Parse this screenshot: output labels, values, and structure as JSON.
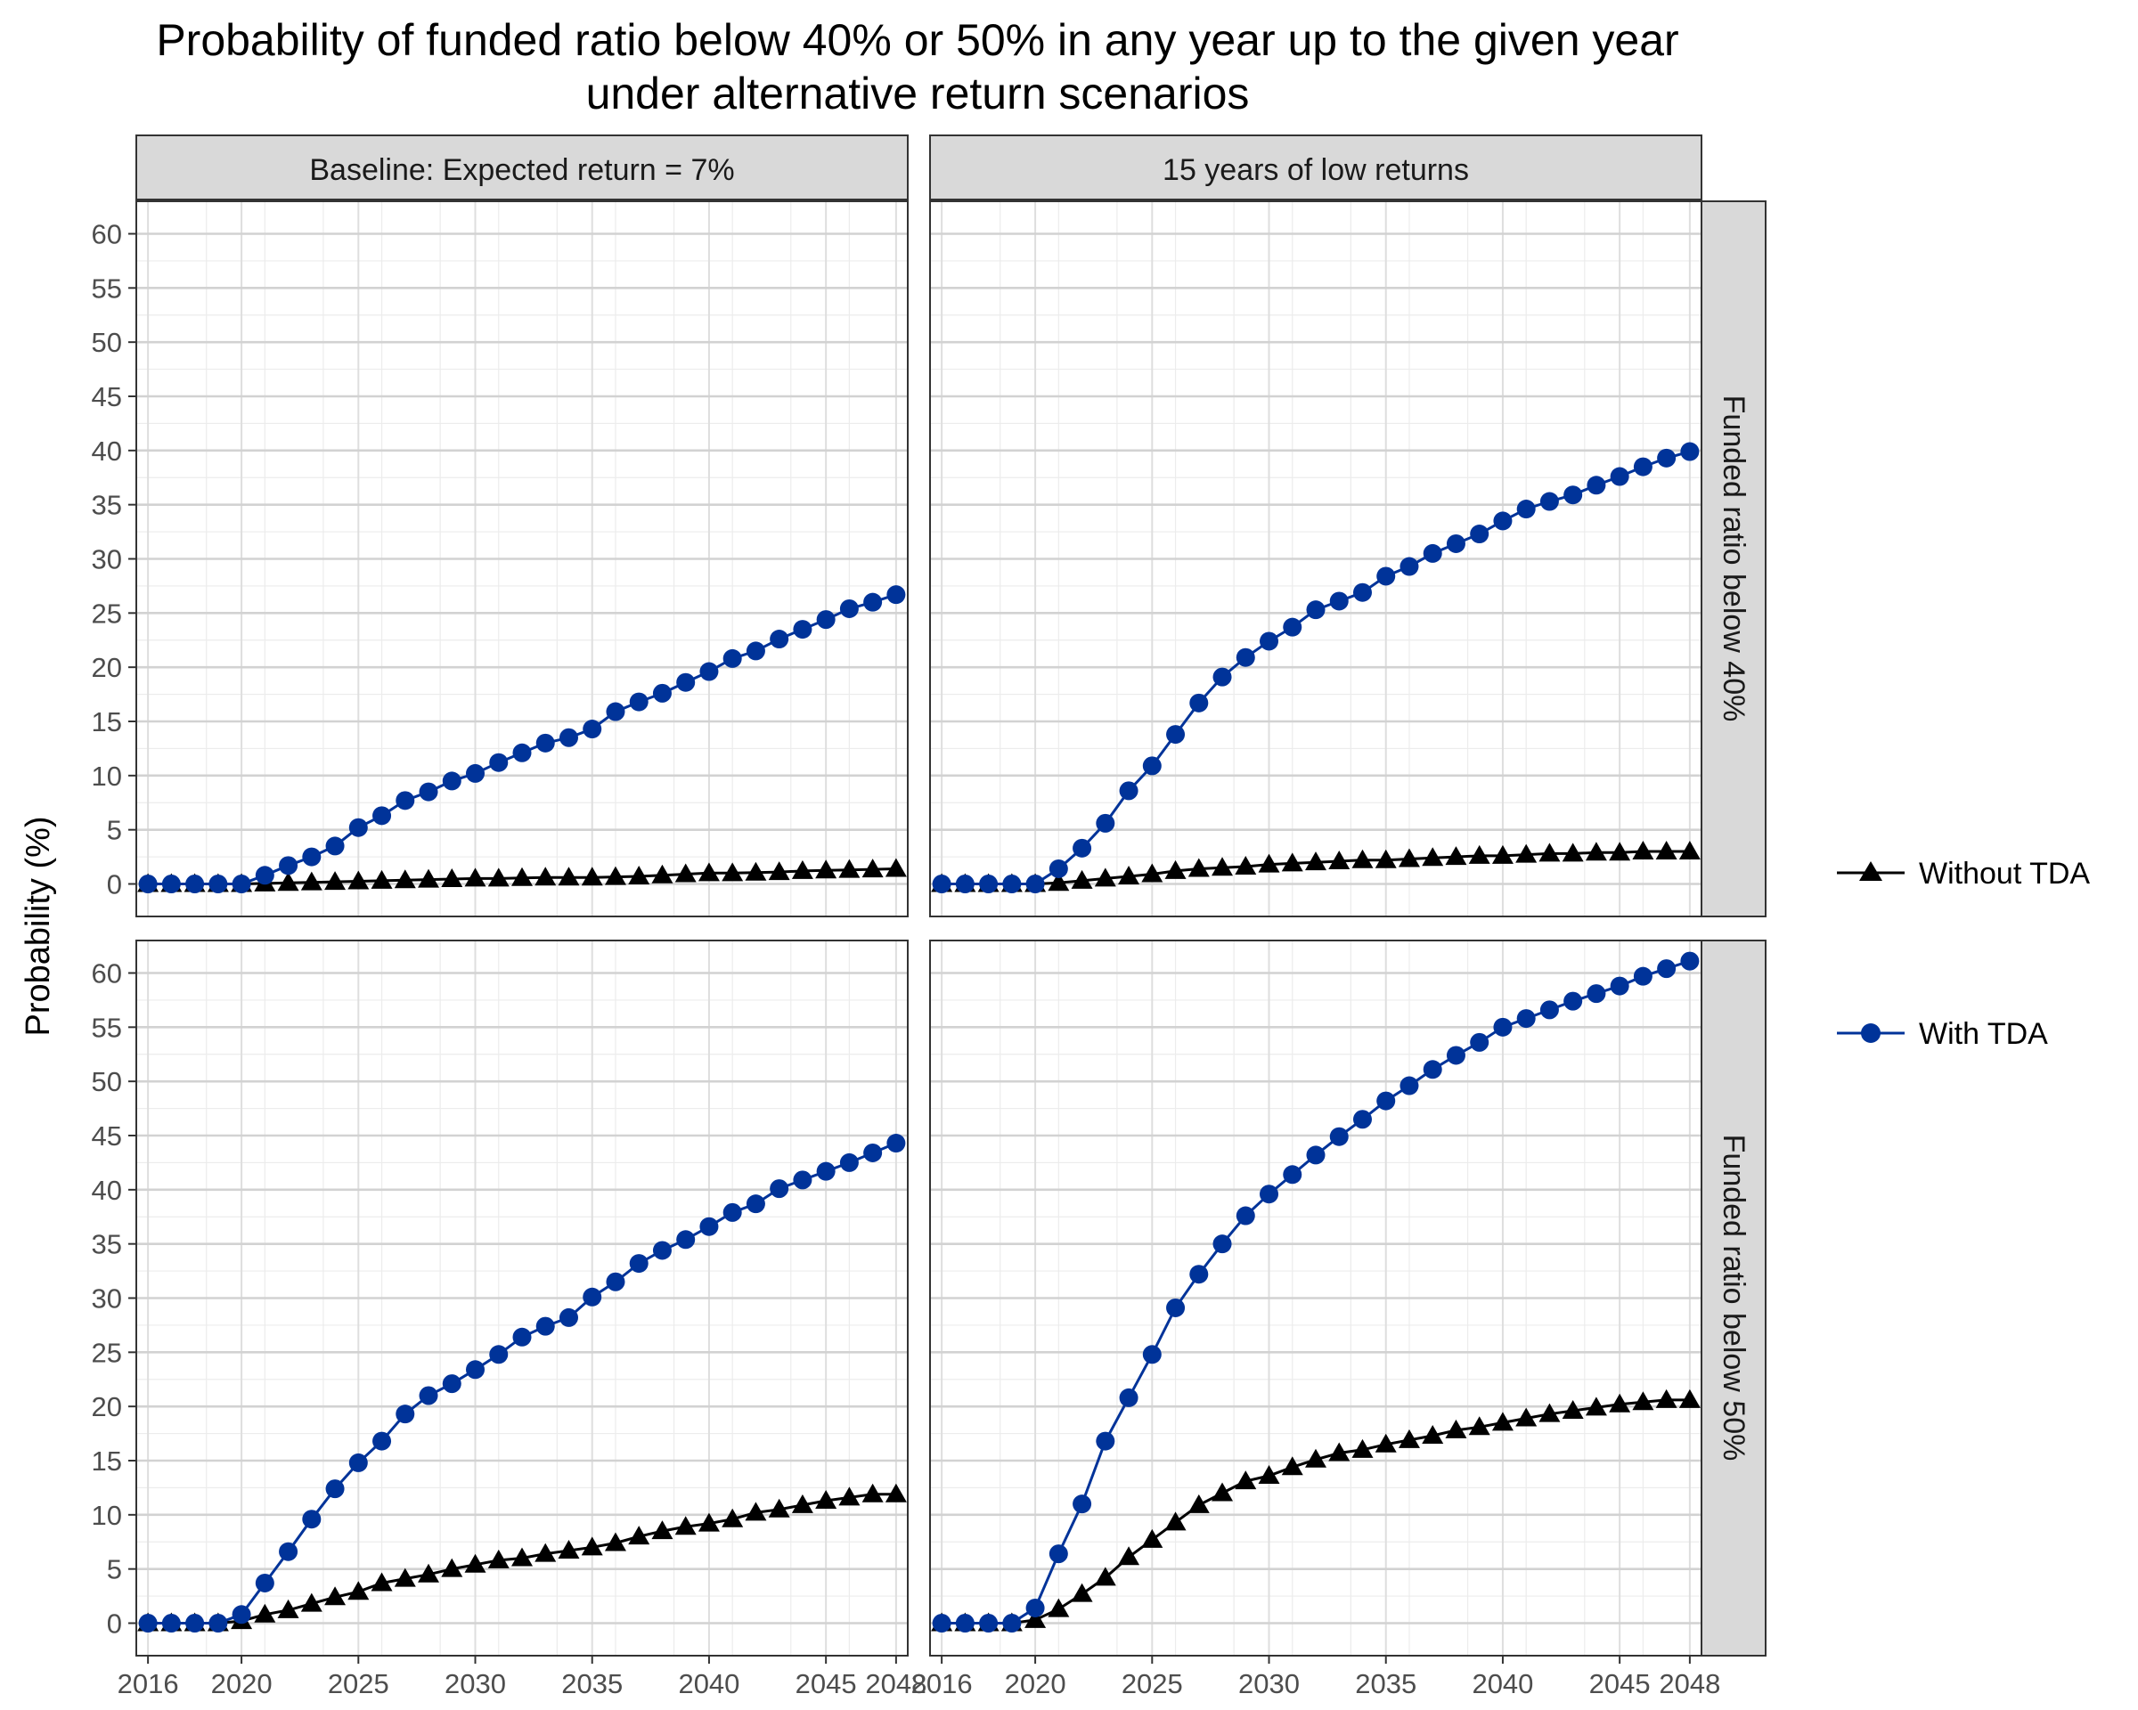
{
  "chart_data": {
    "type": "line",
    "title": "Probability of funded ratio below 40% or 50% in any year up to the given year",
    "subtitle": "under alternative return scenarios",
    "ylabel": "Probability (%)",
    "xlabel": "",
    "ylim": [
      -3,
      63
    ],
    "yticks": [
      0,
      5,
      10,
      15,
      20,
      25,
      30,
      35,
      40,
      45,
      50,
      55,
      60
    ],
    "xlim": [
      2015.5,
      2048.5
    ],
    "xticks": [
      2016,
      2020,
      2025,
      2030,
      2035,
      2040,
      2045,
      2048
    ],
    "grid": true,
    "legend_position": "right",
    "column_facets": [
      "Baseline: Expected return = 7%",
      "15 years of low returns"
    ],
    "row_facets": [
      "Funded ratio below 40%",
      "Funded ratio below 50%"
    ],
    "x": [
      2016,
      2017,
      2018,
      2019,
      2020,
      2021,
      2022,
      2023,
      2024,
      2025,
      2026,
      2027,
      2028,
      2029,
      2030,
      2031,
      2032,
      2033,
      2034,
      2035,
      2036,
      2037,
      2038,
      2039,
      2040,
      2041,
      2042,
      2043,
      2044,
      2045,
      2046,
      2047,
      2048
    ],
    "series_styles": [
      {
        "name": "Without TDA",
        "color": "#000000",
        "marker": "triangle"
      },
      {
        "name": "With TDA",
        "color": "#003399",
        "marker": "circle"
      }
    ],
    "panels": [
      {
        "column": "Baseline: Expected return = 7%",
        "row": "Funded ratio below 40%",
        "series": [
          {
            "name": "Without TDA",
            "values": [
              0,
              0,
              0,
              0,
              0,
              0.05,
              0.1,
              0.15,
              0.2,
              0.25,
              0.3,
              0.35,
              0.4,
              0.45,
              0.5,
              0.5,
              0.55,
              0.6,
              0.6,
              0.6,
              0.65,
              0.7,
              0.8,
              0.9,
              1.0,
              1.0,
              1.05,
              1.1,
              1.2,
              1.25,
              1.3,
              1.35,
              1.4
            ]
          },
          {
            "name": "With TDA",
            "values": [
              0,
              0,
              0,
              0,
              0,
              0.8,
              1.7,
              2.5,
              3.5,
              5.2,
              6.3,
              7.7,
              8.5,
              9.5,
              10.2,
              11.2,
              12.1,
              13.0,
              13.5,
              14.3,
              15.9,
              16.8,
              17.6,
              18.6,
              19.6,
              20.8,
              21.5,
              22.6,
              23.5,
              24.4,
              25.4,
              26.0,
              26.7
            ]
          }
        ]
      },
      {
        "column": "15 years of low returns",
        "row": "Funded ratio below 40%",
        "series": [
          {
            "name": "Without TDA",
            "values": [
              0,
              0,
              0,
              0,
              0,
              0.1,
              0.3,
              0.5,
              0.7,
              0.9,
              1.2,
              1.4,
              1.5,
              1.6,
              1.8,
              1.9,
              2.0,
              2.1,
              2.2,
              2.2,
              2.3,
              2.4,
              2.5,
              2.6,
              2.6,
              2.7,
              2.8,
              2.8,
              2.9,
              2.9,
              3.0,
              3.0,
              3.0
            ]
          },
          {
            "name": "With TDA",
            "values": [
              0,
              0,
              0,
              0,
              0,
              1.4,
              3.3,
              5.6,
              8.6,
              10.9,
              13.8,
              16.7,
              19.1,
              20.9,
              22.4,
              23.7,
              25.3,
              26.1,
              26.9,
              28.4,
              29.3,
              30.5,
              31.4,
              32.3,
              33.5,
              34.6,
              35.3,
              35.9,
              36.8,
              37.6,
              38.5,
              39.3,
              39.9
            ]
          }
        ]
      },
      {
        "column": "Baseline: Expected return = 7%",
        "row": "Funded ratio below 50%",
        "series": [
          {
            "name": "Without TDA",
            "values": [
              0,
              0,
              0,
              0,
              0.2,
              0.8,
              1.2,
              1.8,
              2.4,
              2.9,
              3.7,
              4.1,
              4.5,
              5.0,
              5.4,
              5.8,
              6.0,
              6.4,
              6.7,
              7.0,
              7.4,
              8.0,
              8.5,
              8.9,
              9.2,
              9.6,
              10.2,
              10.5,
              10.9,
              11.3,
              11.6,
              11.9,
              11.9
            ]
          },
          {
            "name": "With TDA",
            "values": [
              0,
              0,
              0,
              0,
              0.8,
              3.7,
              6.6,
              9.6,
              12.4,
              14.8,
              16.8,
              19.3,
              21.0,
              22.1,
              23.4,
              24.8,
              26.4,
              27.4,
              28.2,
              30.1,
              31.5,
              33.2,
              34.4,
              35.4,
              36.6,
              37.9,
              38.7,
              40.1,
              40.9,
              41.7,
              42.5,
              43.4,
              44.3
            ]
          }
        ]
      },
      {
        "column": "15 years of low returns",
        "row": "Funded ratio below 50%",
        "series": [
          {
            "name": "Without TDA",
            "values": [
              0,
              0,
              0,
              0,
              0.3,
              1.3,
              2.7,
              4.2,
              6.1,
              7.7,
              9.3,
              10.9,
              12.0,
              13.1,
              13.6,
              14.4,
              15.1,
              15.7,
              16.0,
              16.5,
              16.9,
              17.3,
              17.8,
              18.1,
              18.5,
              18.9,
              19.3,
              19.6,
              19.9,
              20.2,
              20.4,
              20.6,
              20.6
            ]
          },
          {
            "name": "With TDA",
            "values": [
              0,
              0,
              0,
              0,
              1.4,
              6.4,
              11.0,
              16.8,
              20.8,
              24.8,
              29.1,
              32.2,
              35.0,
              37.6,
              39.6,
              41.4,
              43.2,
              44.9,
              46.5,
              48.2,
              49.6,
              51.1,
              52.4,
              53.6,
              55.0,
              55.8,
              56.6,
              57.4,
              58.1,
              58.8,
              59.7,
              60.4,
              61.1
            ]
          }
        ]
      }
    ]
  }
}
